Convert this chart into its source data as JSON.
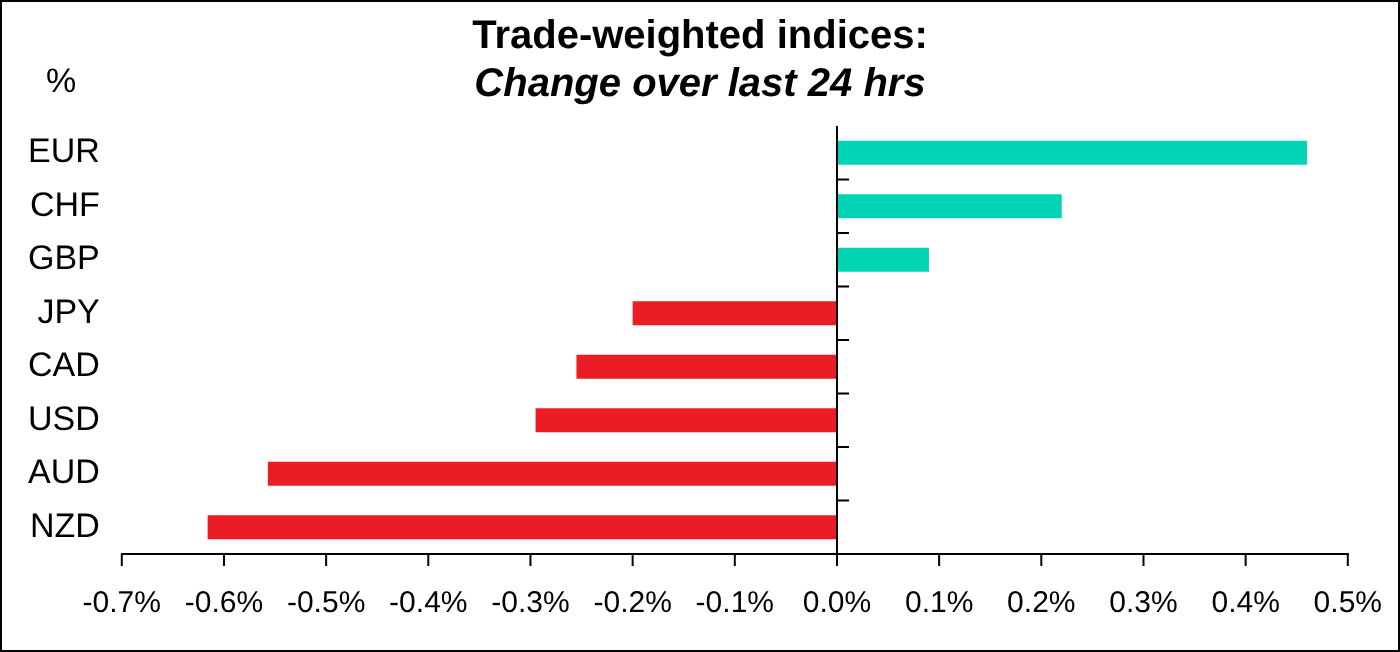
{
  "chart_data": {
    "type": "bar",
    "orientation": "horizontal",
    "title": "Trade-weighted indices:",
    "subtitle": "Change over last 24 hrs",
    "ylabel": "%",
    "categories": [
      "EUR",
      "CHF",
      "GBP",
      "JPY",
      "CAD",
      "USD",
      "AUD",
      "NZD"
    ],
    "values": [
      0.46,
      0.22,
      0.09,
      -0.2,
      -0.255,
      -0.295,
      -0.557,
      -0.616
    ],
    "colors": [
      "#00d4b4",
      "#00d4b4",
      "#00d4b4",
      "#ec1c24",
      "#ec1c24",
      "#ec1c24",
      "#ec1c24",
      "#ec1c24"
    ],
    "xlim": [
      -0.7,
      0.5
    ],
    "xticks": [
      {
        "value": -0.7,
        "label": "-0.7%"
      },
      {
        "value": -0.6,
        "label": "-0.6%"
      },
      {
        "value": -0.5,
        "label": "-0.5%"
      },
      {
        "value": -0.4,
        "label": "-0.4%"
      },
      {
        "value": -0.3,
        "label": "-0.3%"
      },
      {
        "value": -0.2,
        "label": "-0.2%"
      },
      {
        "value": -0.1,
        "label": "-0.1%"
      },
      {
        "value": 0,
        "label": "0.0%"
      },
      {
        "value": 0.1,
        "label": "0.1%"
      },
      {
        "value": 0.2,
        "label": "0.2%"
      },
      {
        "value": 0.3,
        "label": "0.3%"
      },
      {
        "value": 0.4,
        "label": "0.4%"
      },
      {
        "value": 0.5,
        "label": "0.5%"
      }
    ],
    "legend": false
  }
}
